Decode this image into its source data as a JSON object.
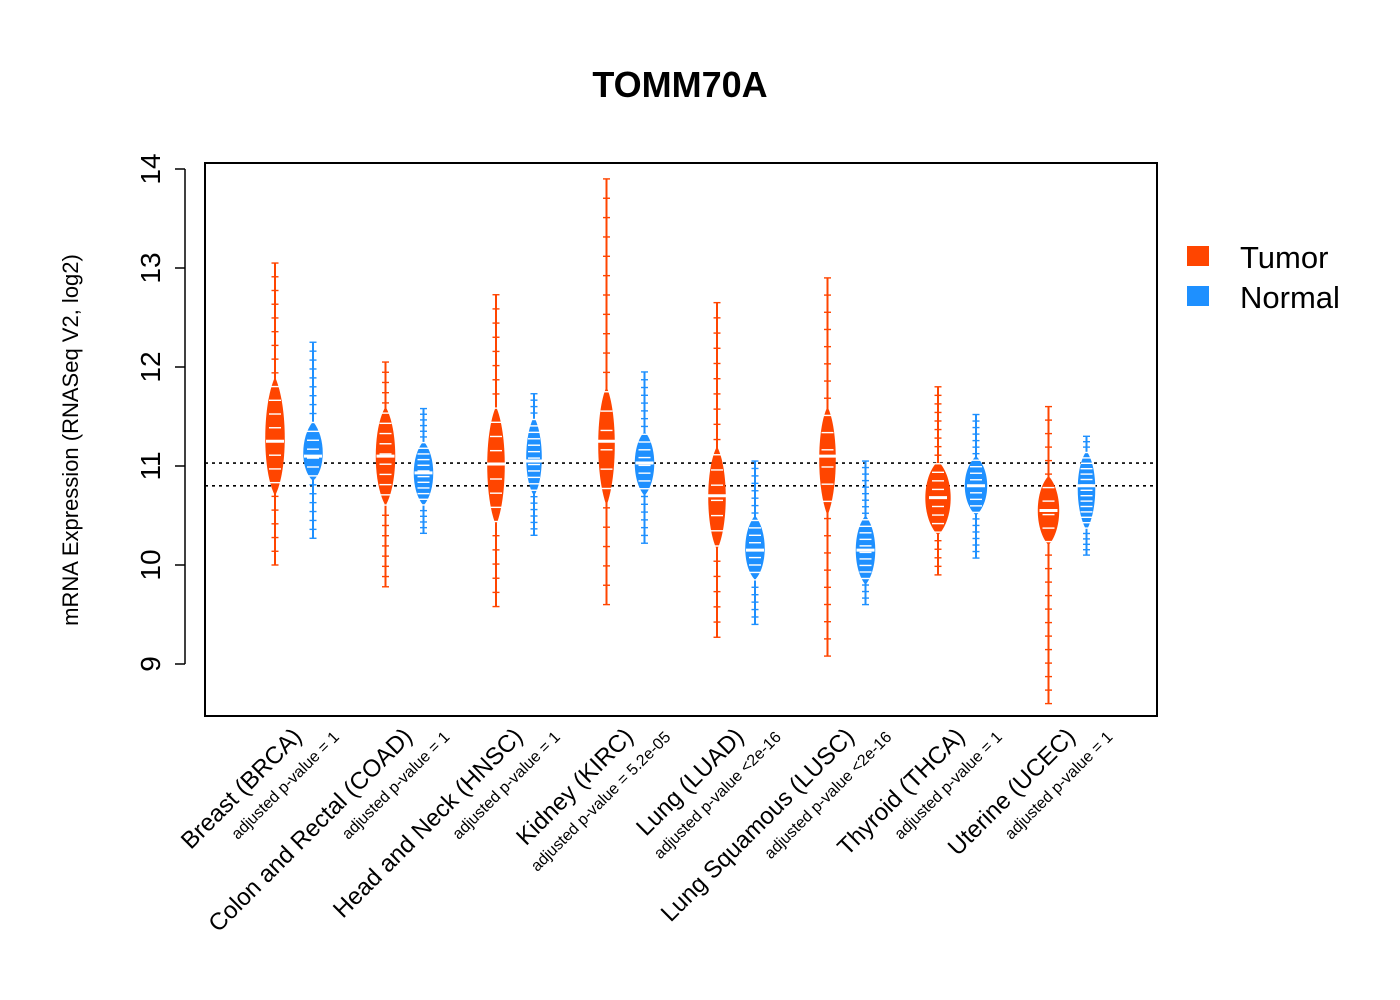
{
  "chart_data": {
    "type": "violin",
    "title": "TOMM70A",
    "xlabel": "",
    "ylabel": "mRNA Expression (RNASeq V2, log2)",
    "ylim": [
      8.5,
      14.1
    ],
    "yticks": [
      9,
      10,
      11,
      12,
      13,
      14
    ],
    "grid": false,
    "legend_position": "right",
    "reference_lines": [
      11.03,
      10.8
    ],
    "legend": [
      {
        "label": "Tumor",
        "color": "#ff4500"
      },
      {
        "label": "Normal",
        "color": "#1e90ff"
      }
    ],
    "groups": [
      {
        "label": "Breast (BRCA)",
        "pvalue": "adjusted p-value = 1",
        "tumor": {
          "min": 10.0,
          "max": 13.05,
          "median": 11.25,
          "core": [
            10.7,
            11.9
          ],
          "width": 1.0
        },
        "normal": {
          "min": 10.27,
          "max": 12.25,
          "median": 11.1,
          "core": [
            10.85,
            11.45
          ],
          "width": 1.0
        }
      },
      {
        "label": "Colon and Rectal (COAD)",
        "pvalue": "adjusted p-value = 1",
        "tumor": {
          "min": 9.78,
          "max": 12.05,
          "median": 11.1,
          "core": [
            10.6,
            11.6
          ],
          "width": 1.0
        },
        "normal": {
          "min": 10.32,
          "max": 11.58,
          "median": 10.93,
          "core": [
            10.6,
            11.25
          ],
          "width": 1.0
        }
      },
      {
        "label": "Head and Neck (HNSC)",
        "pvalue": "adjusted p-value = 1",
        "tumor": {
          "min": 9.58,
          "max": 12.73,
          "median": 11.02,
          "core": [
            10.4,
            11.6
          ],
          "width": 0.9
        },
        "normal": {
          "min": 10.3,
          "max": 11.73,
          "median": 11.05,
          "core": [
            10.7,
            11.5
          ],
          "width": 0.8
        }
      },
      {
        "label": "Kidney (KIRC)",
        "pvalue": "adjusted p-value = 5.2e-05",
        "tumor": {
          "min": 9.6,
          "max": 13.9,
          "median": 11.25,
          "core": [
            10.6,
            11.8
          ],
          "width": 0.85
        },
        "normal": {
          "min": 10.22,
          "max": 11.95,
          "median": 11.03,
          "core": [
            10.7,
            11.35
          ],
          "width": 1.0
        }
      },
      {
        "label": "Lung (LUAD)",
        "pvalue": "adjusted p-value <2e-16",
        "tumor": {
          "min": 9.27,
          "max": 12.65,
          "median": 10.7,
          "core": [
            10.15,
            11.2
          ],
          "width": 0.9
        },
        "normal": {
          "min": 9.4,
          "max": 11.05,
          "median": 10.15,
          "core": [
            9.85,
            10.5
          ],
          "width": 1.0
        }
      },
      {
        "label": "Lung Squamous (LUSC)",
        "pvalue": "adjusted p-value <2e-16",
        "tumor": {
          "min": 9.08,
          "max": 12.9,
          "median": 11.1,
          "core": [
            10.5,
            11.6
          ],
          "width": 0.85
        },
        "normal": {
          "min": 9.6,
          "max": 11.05,
          "median": 10.15,
          "core": [
            9.8,
            10.5
          ],
          "width": 1.0
        }
      },
      {
        "label": "Thyroid (THCA)",
        "pvalue": "adjusted p-value = 1",
        "tumor": {
          "min": 9.9,
          "max": 11.8,
          "median": 10.68,
          "core": [
            10.3,
            11.05
          ],
          "width": 1.3
        },
        "normal": {
          "min": 10.07,
          "max": 11.52,
          "median": 10.8,
          "core": [
            10.5,
            11.1
          ],
          "width": 1.15
        }
      },
      {
        "label": "Uterine (UCEC)",
        "pvalue": "adjusted p-value = 1",
        "tumor": {
          "min": 8.6,
          "max": 11.6,
          "median": 10.55,
          "core": [
            10.2,
            10.9
          ],
          "width": 1.1
        },
        "normal": {
          "min": 10.1,
          "max": 11.3,
          "median": 10.8,
          "core": [
            10.35,
            11.15
          ],
          "width": 0.9
        }
      }
    ]
  }
}
